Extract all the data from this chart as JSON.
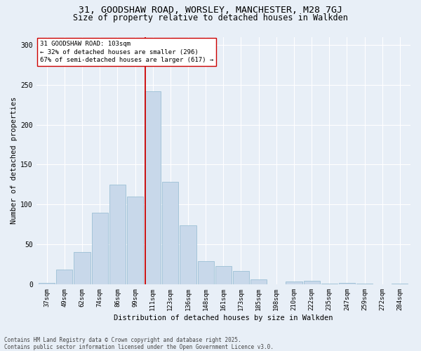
{
  "title1": "31, GOODSHAW ROAD, WORSLEY, MANCHESTER, M28 7GJ",
  "title2": "Size of property relative to detached houses in Walkden",
  "xlabel": "Distribution of detached houses by size in Walkden",
  "ylabel": "Number of detached properties",
  "categories": [
    "37sqm",
    "49sqm",
    "62sqm",
    "74sqm",
    "86sqm",
    "99sqm",
    "111sqm",
    "123sqm",
    "136sqm",
    "148sqm",
    "161sqm",
    "173sqm",
    "185sqm",
    "198sqm",
    "210sqm",
    "222sqm",
    "235sqm",
    "247sqm",
    "259sqm",
    "272sqm",
    "284sqm"
  ],
  "heights": [
    2,
    18,
    40,
    90,
    125,
    110,
    242,
    128,
    74,
    29,
    23,
    17,
    6,
    0,
    3,
    4,
    1,
    2,
    1,
    0,
    1
  ],
  "bar_color": "#c8d8ea",
  "bar_edge_color": "#90b8d0",
  "vline_color": "#cc0000",
  "vline_x_index": 5.58,
  "annotation_text": "31 GOODSHAW ROAD: 103sqm\n← 32% of detached houses are smaller (296)\n67% of semi-detached houses are larger (617) →",
  "ann_box_facecolor": "#ffffff",
  "ann_box_edgecolor": "#cc0000",
  "ylim": [
    0,
    310
  ],
  "yticks": [
    0,
    50,
    100,
    150,
    200,
    250,
    300
  ],
  "footer": "Contains HM Land Registry data © Crown copyright and database right 2025.\nContains public sector information licensed under the Open Government Licence v3.0.",
  "bg_color": "#e8eff7",
  "grid_color": "#ffffff",
  "title1_fontsize": 9.5,
  "title2_fontsize": 8.5,
  "label_fontsize": 7.5,
  "ylabel_fontsize": 7.5,
  "tick_fontsize": 6.5,
  "ann_fontsize": 6.5,
  "footer_fontsize": 5.5
}
